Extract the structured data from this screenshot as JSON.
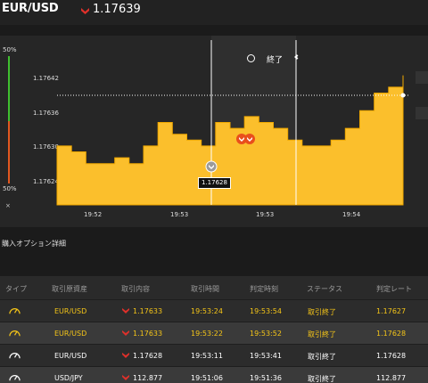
{
  "header": {
    "pair": "EUR/USD",
    "rate": "1.17639",
    "direction_icon": "down-arrow-icon"
  },
  "gauge": {
    "top_pct": "50%",
    "bottom_pct": "50%",
    "close_label": "×"
  },
  "chart": {
    "y_ticks": [
      "1.17642",
      "1.17636",
      "1.17630",
      "1.17624"
    ],
    "x_ticks": [
      "19:52",
      "19:53",
      "19:53",
      "19:54"
    ],
    "entry_price_label": "1.17628",
    "end_label": "終了",
    "colors": {
      "area": "#fbbf2c",
      "background": "#262626",
      "shade": "#2f2f2f"
    }
  },
  "chart_data": {
    "type": "area",
    "x": [
      "19:52:00",
      "19:52:10",
      "19:52:20",
      "19:52:30",
      "19:52:40",
      "19:52:50",
      "19:53:00",
      "19:53:05",
      "19:53:10",
      "19:53:15",
      "19:53:20",
      "19:53:25",
      "19:53:30",
      "19:53:35",
      "19:53:40",
      "19:53:45",
      "19:53:50",
      "19:53:55",
      "19:54:00",
      "19:54:05",
      "19:54:10",
      "19:54:15",
      "19:54:20",
      "19:54:25",
      "19:54:30"
    ],
    "y": [
      1.17627,
      1.17626,
      1.17624,
      1.17624,
      1.17625,
      1.17624,
      1.17627,
      1.17631,
      1.17629,
      1.17628,
      1.17627,
      1.17631,
      1.1763,
      1.17632,
      1.17631,
      1.1763,
      1.17628,
      1.17627,
      1.17627,
      1.17628,
      1.1763,
      1.17633,
      1.17636,
      1.17637,
      1.17639
    ],
    "ylim": [
      1.17617,
      1.17645
    ],
    "xlabel": "",
    "ylabel": "",
    "grid": false
  },
  "section": {
    "title": "購入オプション詳細"
  },
  "table": {
    "headers": [
      "タイプ",
      "取引原資産",
      "取引内容",
      "取引時間",
      "判定時刻",
      "ステータス",
      "判定レート"
    ],
    "rows": [
      {
        "type_icon": "gauge-icon",
        "asset": "EUR/USD",
        "content": "1.17633",
        "time": "19:53:24",
        "judge": "19:53:54",
        "status": "取引終了",
        "rate": "1.17627",
        "highlight": true
      },
      {
        "type_icon": "gauge-icon",
        "asset": "EUR/USD",
        "content": "1.17633",
        "time": "19:53:22",
        "judge": "19:53:52",
        "status": "取引終了",
        "rate": "1.17628",
        "highlight": true
      },
      {
        "type_icon": "gauge-icon",
        "asset": "EUR/USD",
        "content": "1.17628",
        "time": "19:53:11",
        "judge": "19:53:41",
        "status": "取引終了",
        "rate": "1.17628",
        "highlight": false
      },
      {
        "type_icon": "gauge-icon",
        "asset": "USD/JPY",
        "content": "112.877",
        "time": "19:51:06",
        "judge": "19:51:36",
        "status": "取引終了",
        "rate": "112.877",
        "highlight": false
      }
    ]
  }
}
